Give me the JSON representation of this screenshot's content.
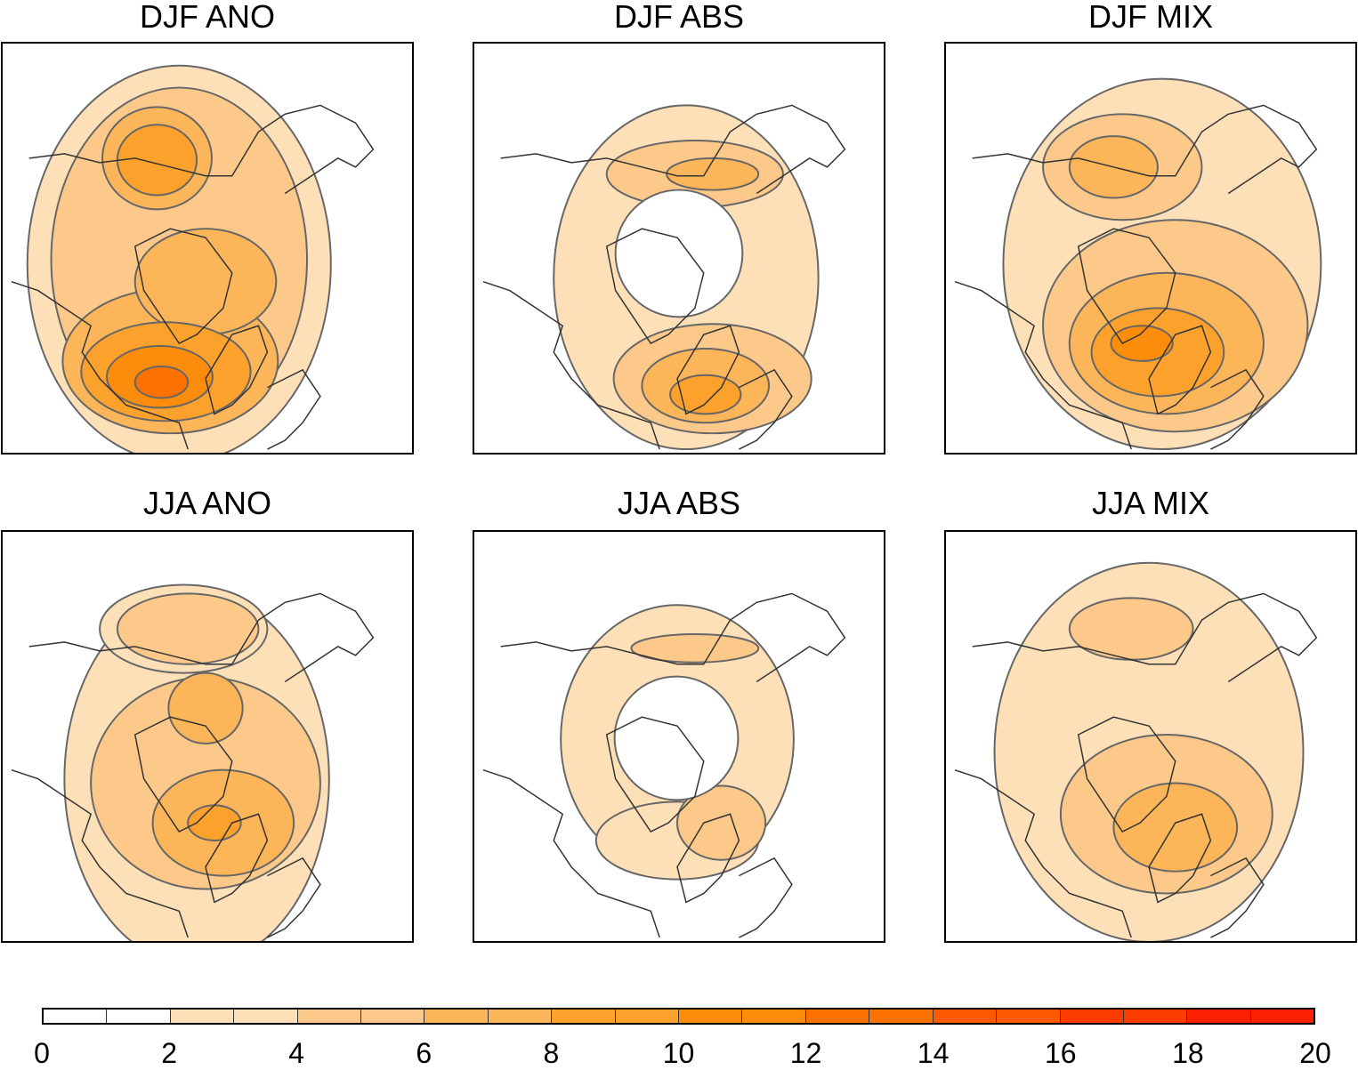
{
  "panels": [
    {
      "title": "DJF ANO"
    },
    {
      "title": "DJF ABS"
    },
    {
      "title": "DJF MIX"
    },
    {
      "title": "JJA ANO"
    },
    {
      "title": "JJA ABS"
    },
    {
      "title": "JJA MIX"
    }
  ],
  "colorbar": {
    "range": [
      0,
      20
    ],
    "step": 2,
    "tick_labels": [
      "0",
      "2",
      "4",
      "6",
      "8",
      "10",
      "12",
      "14",
      "16",
      "18",
      "20"
    ],
    "colors": [
      "#ffffff",
      "#fde0b8",
      "#fdc98a",
      "#fdb55a",
      "#fca22c",
      "#fc8c0c",
      "#fc7200",
      "#fc5a00",
      "#fc3c00",
      "#fc2000"
    ]
  },
  "stipple_colors": {
    "significant_positive": "#e0201a",
    "significant_negative": "#2020d0"
  },
  "contour_line_color": "#666666"
}
